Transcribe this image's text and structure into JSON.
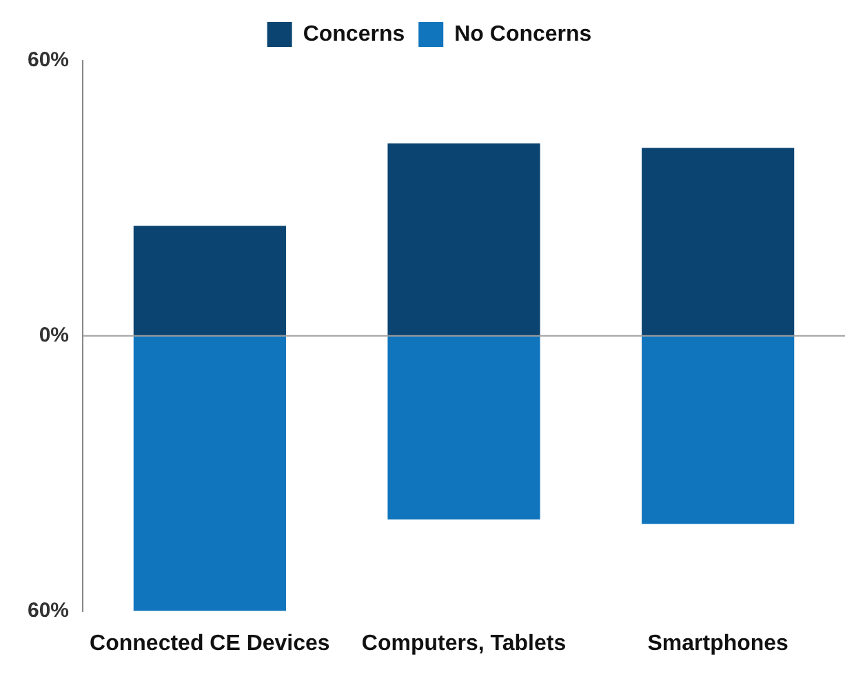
{
  "chart_data": {
    "type": "bar",
    "stacked": true,
    "categories": [
      "Connected CE Devices",
      "Computers, Tablets",
      "Smartphones"
    ],
    "series": [
      {
        "name": "Concerns",
        "color": "#0b4470",
        "values": [
          24,
          42,
          41
        ]
      },
      {
        "name": "No Concerns",
        "color": "#1075bd",
        "values": [
          -60,
          -40,
          -41
        ]
      }
    ],
    "ylim": [
      -60,
      60
    ],
    "yticks": [
      {
        "value": -60,
        "label": "60%"
      },
      {
        "value": 0,
        "label": "0%"
      },
      {
        "value": 60,
        "label": "60%"
      }
    ],
    "ref_lines": [
      {
        "axis": "y",
        "value": 0,
        "color": "#a0a0a0"
      }
    ],
    "grid": false,
    "legend": "top"
  }
}
